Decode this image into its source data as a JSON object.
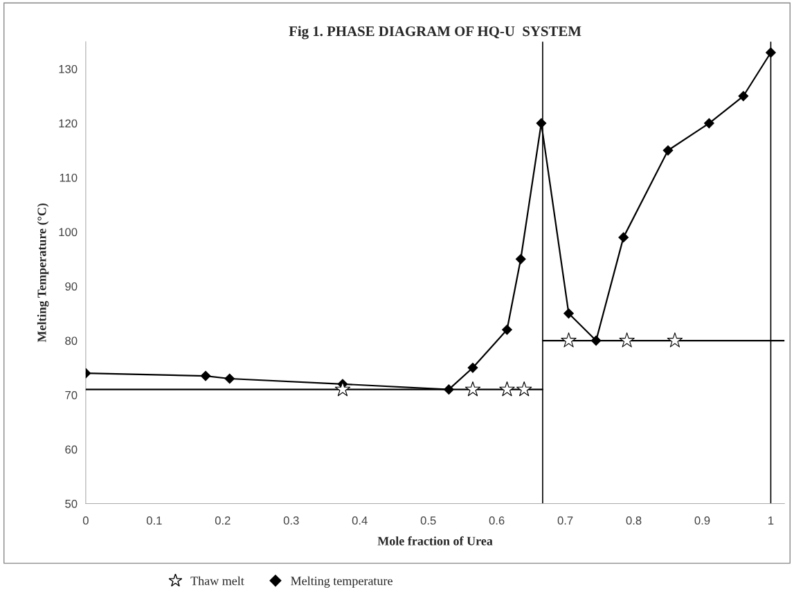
{
  "chart_data": {
    "type": "line",
    "title": "Fig 1. PHASE DIAGRAM OF HQ-U  SYSTEM",
    "xlabel": "Mole fraction of Urea",
    "ylabel": "Melting Temperature (°C)",
    "xlim": [
      0,
      1.02
    ],
    "xticks": [
      0,
      0.1,
      0.2,
      0.3,
      0.4,
      0.5,
      0.6,
      0.7,
      0.8,
      0.9,
      1
    ],
    "ylim": [
      50,
      135
    ],
    "yticks": [
      50,
      60,
      70,
      80,
      90,
      100,
      110,
      120,
      130
    ],
    "grid": false,
    "legend": "bottom",
    "series": [
      {
        "name": "Thaw melt",
        "type": "scatter",
        "marker": "star",
        "color": "#ffffff",
        "x": [
          0.375,
          0.565,
          0.615,
          0.64,
          0.705,
          0.79,
          0.86
        ],
        "values": [
          71,
          71,
          71,
          71,
          80,
          80,
          80
        ]
      },
      {
        "name": "Melting temperature",
        "marker": "diamond",
        "color": "#000000",
        "x": [
          0,
          0.175,
          0.21,
          0.375,
          0.53,
          0.565,
          0.615,
          0.635,
          0.665,
          0.705,
          0.745,
          0.785,
          0.85,
          0.91,
          0.96,
          1.0
        ],
        "values": [
          74,
          73.5,
          73,
          72,
          71,
          75,
          82,
          95,
          120,
          85,
          80,
          99,
          115,
          120,
          125,
          133
        ]
      },
      {
        "marker": "none",
        "color": "#000000",
        "x": [
          0,
          0.667
        ],
        "values": [
          71,
          71
        ]
      },
      {
        "marker": "none",
        "color": "#000000",
        "x": [
          0.667,
          1.02
        ],
        "values": [
          80,
          80
        ]
      }
    ],
    "ref_lines": [
      {
        "axis": "x",
        "value": 0.667,
        "color": "#000000"
      },
      {
        "axis": "x",
        "value": 1.0,
        "color": "#000000"
      }
    ]
  }
}
